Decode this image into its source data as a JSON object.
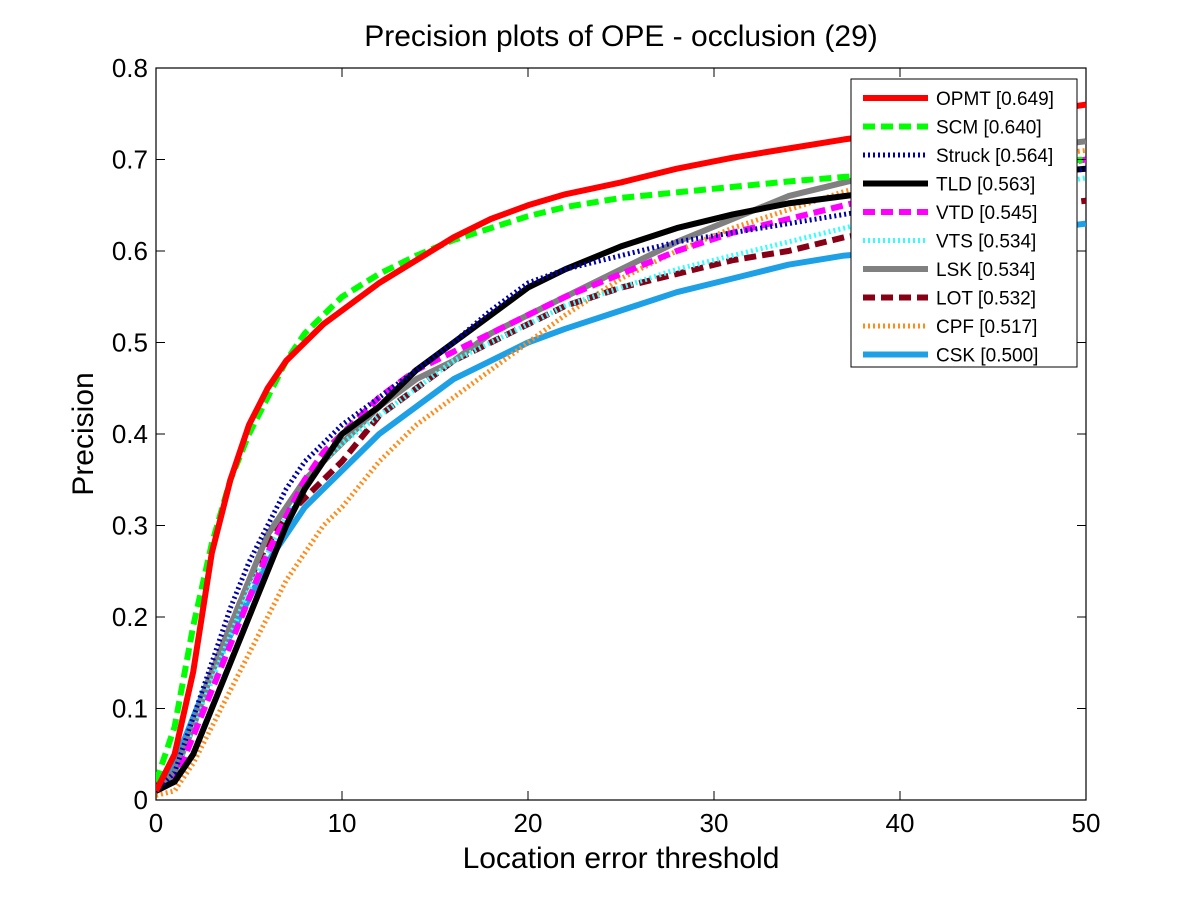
{
  "chart_data": {
    "type": "line",
    "title": "Precision plots of OPE - occlusion (29)",
    "xlabel": "Location error threshold",
    "ylabel": "Precision",
    "xlim": [
      0,
      50
    ],
    "ylim": [
      0,
      0.8
    ],
    "xticks": [
      0,
      10,
      20,
      30,
      40,
      50
    ],
    "yticks": [
      0,
      0.1,
      0.2,
      0.3,
      0.4,
      0.5,
      0.6,
      0.7,
      0.8
    ],
    "grid": false,
    "legend_position": "top-right",
    "series": [
      {
        "name": "OPMT [0.649]",
        "color": "#ff0000",
        "style": "solid",
        "x": [
          0,
          1,
          2,
          3,
          4,
          5,
          6,
          7,
          8,
          9,
          10,
          12,
          14,
          16,
          18,
          20,
          22,
          25,
          28,
          31,
          34,
          37,
          40,
          43,
          46,
          50
        ],
        "y": [
          0.01,
          0.05,
          0.14,
          0.27,
          0.35,
          0.41,
          0.45,
          0.48,
          0.5,
          0.52,
          0.535,
          0.565,
          0.59,
          0.615,
          0.635,
          0.65,
          0.662,
          0.675,
          0.69,
          0.702,
          0.712,
          0.722,
          0.73,
          0.738,
          0.748,
          0.76
        ]
      },
      {
        "name": "SCM [0.640]",
        "color": "#00ff00",
        "style": "dashed",
        "x": [
          0,
          1,
          2,
          3,
          4,
          5,
          6,
          7,
          8,
          9,
          10,
          12,
          14,
          16,
          18,
          20,
          22,
          25,
          28,
          31,
          34,
          37,
          40,
          43,
          46,
          50
        ],
        "y": [
          0.02,
          0.08,
          0.19,
          0.28,
          0.35,
          0.4,
          0.44,
          0.48,
          0.51,
          0.53,
          0.55,
          0.575,
          0.595,
          0.612,
          0.625,
          0.638,
          0.648,
          0.658,
          0.664,
          0.67,
          0.676,
          0.681,
          0.685,
          0.69,
          0.695,
          0.7
        ]
      },
      {
        "name": "Struck [0.564]",
        "color": "#0000aa",
        "style": "dotted",
        "x": [
          0,
          1,
          2,
          3,
          4,
          5,
          6,
          7,
          8,
          9,
          10,
          12,
          14,
          16,
          18,
          20,
          22,
          25,
          28,
          31,
          34,
          37,
          40,
          43,
          46,
          50
        ],
        "y": [
          0.01,
          0.03,
          0.09,
          0.15,
          0.21,
          0.26,
          0.3,
          0.34,
          0.37,
          0.39,
          0.41,
          0.44,
          0.47,
          0.5,
          0.535,
          0.565,
          0.58,
          0.595,
          0.61,
          0.62,
          0.63,
          0.64,
          0.65,
          0.66,
          0.675,
          0.69
        ]
      },
      {
        "name": "TLD [0.563]",
        "color": "#000000",
        "style": "solid",
        "x": [
          0,
          1,
          2,
          3,
          4,
          5,
          6,
          7,
          8,
          9,
          10,
          12,
          14,
          16,
          18,
          20,
          22,
          25,
          28,
          31,
          34,
          37,
          40,
          43,
          46,
          50
        ],
        "y": [
          0.01,
          0.02,
          0.05,
          0.1,
          0.15,
          0.2,
          0.25,
          0.3,
          0.34,
          0.37,
          0.4,
          0.43,
          0.47,
          0.5,
          0.53,
          0.56,
          0.58,
          0.605,
          0.625,
          0.64,
          0.652,
          0.66,
          0.668,
          0.675,
          0.683,
          0.69
        ]
      },
      {
        "name": "VTD [0.545]",
        "color": "#ff00ff",
        "style": "dashed",
        "x": [
          0,
          1,
          2,
          3,
          4,
          5,
          6,
          7,
          8,
          9,
          10,
          12,
          14,
          16,
          18,
          20,
          22,
          25,
          28,
          31,
          34,
          37,
          40,
          43,
          46,
          50
        ],
        "y": [
          0.01,
          0.02,
          0.07,
          0.12,
          0.17,
          0.22,
          0.27,
          0.31,
          0.35,
          0.38,
          0.4,
          0.44,
          0.47,
          0.49,
          0.51,
          0.53,
          0.55,
          0.575,
          0.6,
          0.62,
          0.635,
          0.65,
          0.665,
          0.675,
          0.685,
          0.7
        ]
      },
      {
        "name": "VTS [0.534]",
        "color": "#33ffff",
        "style": "dotted",
        "x": [
          0,
          1,
          2,
          3,
          4,
          5,
          6,
          7,
          8,
          9,
          10,
          12,
          14,
          16,
          18,
          20,
          22,
          25,
          28,
          31,
          34,
          37,
          40,
          43,
          46,
          50
        ],
        "y": [
          0.01,
          0.03,
          0.08,
          0.13,
          0.18,
          0.23,
          0.27,
          0.31,
          0.34,
          0.37,
          0.39,
          0.42,
          0.45,
          0.48,
          0.5,
          0.52,
          0.54,
          0.56,
          0.58,
          0.595,
          0.61,
          0.625,
          0.64,
          0.655,
          0.665,
          0.68
        ]
      },
      {
        "name": "LSK [0.534]",
        "color": "#808080",
        "style": "solid",
        "x": [
          0,
          1,
          2,
          3,
          4,
          5,
          6,
          7,
          8,
          9,
          10,
          12,
          14,
          16,
          18,
          20,
          22,
          25,
          28,
          31,
          34,
          37,
          40,
          43,
          46,
          50
        ],
        "y": [
          0.01,
          0.03,
          0.08,
          0.14,
          0.19,
          0.24,
          0.29,
          0.32,
          0.35,
          0.37,
          0.39,
          0.43,
          0.46,
          0.48,
          0.51,
          0.53,
          0.55,
          0.58,
          0.61,
          0.635,
          0.66,
          0.675,
          0.69,
          0.7,
          0.71,
          0.72
        ]
      },
      {
        "name": "LOT [0.532]",
        "color": "#880015",
        "style": "dashed",
        "x": [
          0,
          1,
          2,
          3,
          4,
          5,
          6,
          7,
          8,
          9,
          10,
          12,
          14,
          16,
          18,
          20,
          22,
          25,
          28,
          31,
          34,
          37,
          40,
          43,
          46,
          50
        ],
        "y": [
          0.01,
          0.03,
          0.08,
          0.14,
          0.19,
          0.24,
          0.28,
          0.31,
          0.33,
          0.35,
          0.37,
          0.42,
          0.45,
          0.48,
          0.5,
          0.52,
          0.54,
          0.56,
          0.575,
          0.59,
          0.6,
          0.615,
          0.625,
          0.635,
          0.645,
          0.655
        ]
      },
      {
        "name": "CPF [0.517]",
        "color": "#ff8c1a",
        "style": "dotted",
        "x": [
          0,
          1,
          2,
          3,
          4,
          5,
          6,
          7,
          8,
          9,
          10,
          12,
          14,
          16,
          18,
          20,
          22,
          25,
          28,
          31,
          34,
          37,
          40,
          43,
          46,
          50
        ],
        "y": [
          0.005,
          0.01,
          0.04,
          0.08,
          0.12,
          0.16,
          0.2,
          0.24,
          0.27,
          0.3,
          0.32,
          0.37,
          0.41,
          0.44,
          0.47,
          0.5,
          0.53,
          0.57,
          0.6,
          0.625,
          0.645,
          0.665,
          0.68,
          0.69,
          0.7,
          0.71
        ]
      },
      {
        "name": "CSK [0.500]",
        "color": "#1ea0e6",
        "style": "solid",
        "x": [
          0,
          1,
          2,
          3,
          4,
          5,
          6,
          7,
          8,
          9,
          10,
          12,
          14,
          16,
          18,
          20,
          22,
          25,
          28,
          31,
          34,
          37,
          40,
          43,
          46,
          50
        ],
        "y": [
          0.01,
          0.04,
          0.09,
          0.14,
          0.18,
          0.22,
          0.26,
          0.29,
          0.32,
          0.34,
          0.36,
          0.4,
          0.43,
          0.46,
          0.48,
          0.5,
          0.515,
          0.535,
          0.555,
          0.57,
          0.585,
          0.595,
          0.6,
          0.61,
          0.62,
          0.63
        ]
      }
    ]
  }
}
